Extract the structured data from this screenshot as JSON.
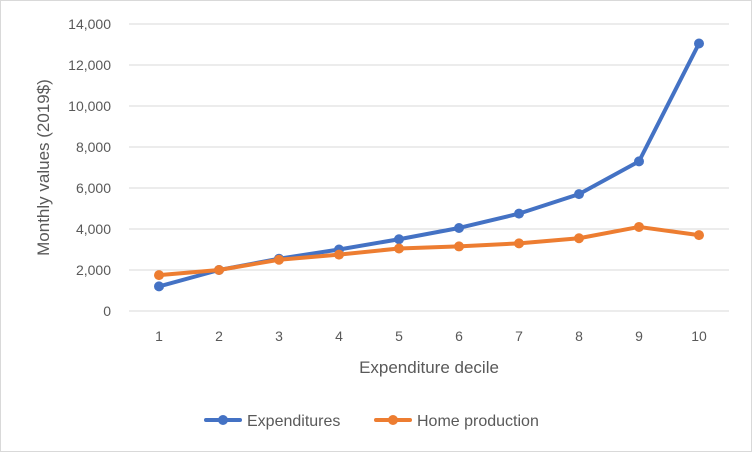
{
  "chart_data": {
    "type": "line",
    "title": "",
    "xlabel": "Expenditure decile",
    "ylabel": "Monthly values (2019$)",
    "categories": [
      "1",
      "2",
      "3",
      "4",
      "5",
      "6",
      "7",
      "8",
      "9",
      "10"
    ],
    "ylim": [
      0,
      14000
    ],
    "yticks": [
      0,
      2000,
      4000,
      6000,
      8000,
      10000,
      12000,
      14000
    ],
    "ytick_labels": [
      "0",
      "2,000",
      "4,000",
      "6,000",
      "8,000",
      "10,000",
      "12,000",
      "14,000"
    ],
    "grid": true,
    "legend_position": "bottom",
    "series": [
      {
        "name": "Expenditures",
        "color": "#4472c4",
        "values": [
          1200,
          2000,
          2550,
          3000,
          3500,
          4050,
          4750,
          5700,
          7300,
          13050
        ]
      },
      {
        "name": "Home production",
        "color": "#ed7d31",
        "values": [
          1750,
          2000,
          2500,
          2750,
          3050,
          3150,
          3300,
          3550,
          4100,
          3700
        ]
      }
    ]
  }
}
